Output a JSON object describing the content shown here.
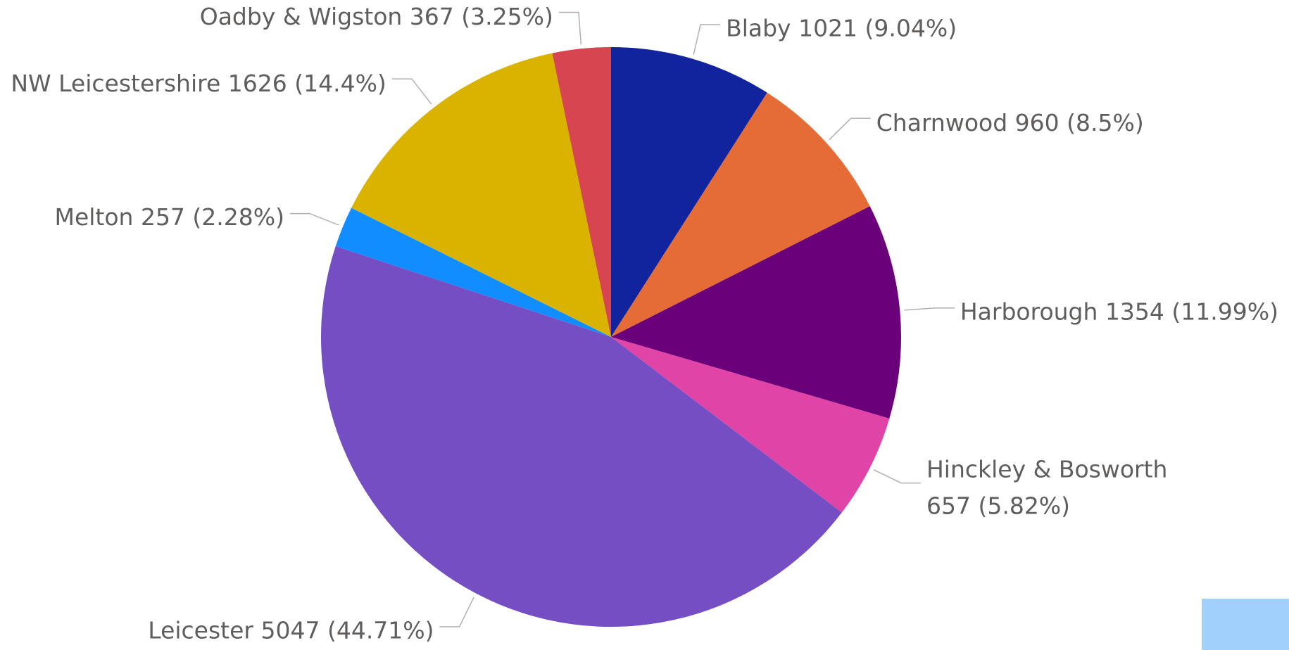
{
  "chart_data": {
    "type": "pie",
    "values": [
      1021,
      960,
      1354,
      657,
      5047,
      257,
      1626,
      367
    ],
    "value_labels": [
      [
        "Blaby 1021 (9.04%)"
      ],
      [
        "Charnwood 960 (8.5%)"
      ],
      [
        "Harborough 1354 (11.99%)"
      ],
      [
        "Hinckley & Bosworth",
        "657 (5.82%)"
      ],
      [
        "Leicester 5047 (44.71%)"
      ],
      [
        "Melton 257 (2.28%)"
      ],
      [
        "NW Leicestershire 1626 (14.4%)"
      ],
      [
        "Oadby & Wigston 367 (3.25%)"
      ]
    ],
    "colors": [
      "#12239e",
      "#e66c37",
      "#6b007b",
      "#e044a7",
      "#744ec2",
      "#118dff",
      "#d9b300",
      "#d64550"
    ]
  }
}
